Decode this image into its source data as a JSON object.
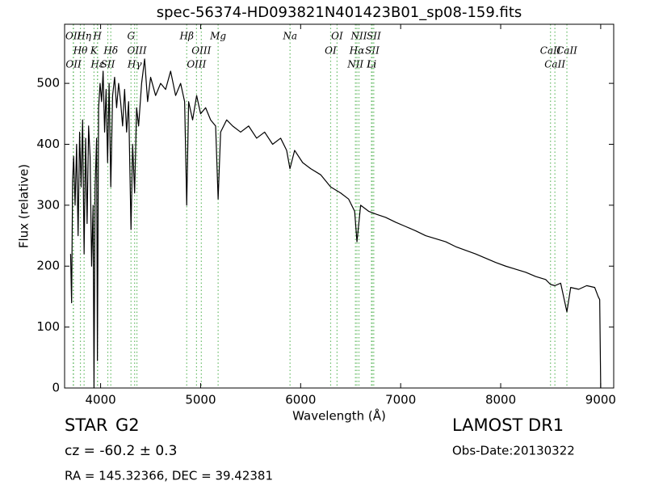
{
  "chart_data": {
    "type": "line",
    "title": "spec-56374-HD093821N401423B01_sp08-159.fits",
    "x_label": "Wavelength (Å)",
    "y_label": "Flux (relative)",
    "xlim": [
      3640,
      9130
    ],
    "ylim": [
      0,
      597
    ],
    "xticks": [
      4000,
      5000,
      6000,
      7000,
      8000,
      9000
    ],
    "yticks": [
      0,
      100,
      200,
      300,
      400,
      500
    ],
    "color": "#000000",
    "line_color": "#66bb66",
    "x": [
      3700,
      3710,
      3720,
      3730,
      3745,
      3760,
      3775,
      3790,
      3805,
      3820,
      3835,
      3850,
      3865,
      3880,
      3895,
      3910,
      3925,
      3934,
      3945,
      3960,
      3968,
      3980,
      3995,
      4010,
      4025,
      4040,
      4055,
      4070,
      4085,
      4102,
      4120,
      4140,
      4160,
      4180,
      4200,
      4220,
      4240,
      4260,
      4280,
      4304,
      4320,
      4340,
      4360,
      4380,
      4410,
      4440,
      4470,
      4500,
      4550,
      4600,
      4650,
      4700,
      4750,
      4800,
      4840,
      4861,
      4880,
      4920,
      4960,
      5000,
      5050,
      5100,
      5150,
      5175,
      5200,
      5260,
      5320,
      5400,
      5480,
      5560,
      5640,
      5720,
      5800,
      5860,
      5893,
      5940,
      6020,
      6100,
      6200,
      6300,
      6400,
      6480,
      6540,
      6563,
      6600,
      6680,
      6760,
      6850,
      6950,
      7050,
      7150,
      7250,
      7350,
      7450,
      7550,
      7650,
      7750,
      7850,
      7950,
      8050,
      8150,
      8250,
      8350,
      8450,
      8498,
      8542,
      8600,
      8662,
      8700,
      8780,
      8860,
      8940,
      8975,
      8990,
      9000
    ],
    "values": [
      220,
      140,
      340,
      380,
      300,
      400,
      250,
      420,
      330,
      440,
      220,
      410,
      270,
      430,
      380,
      200,
      300,
      0,
      330,
      410,
      45,
      460,
      500,
      470,
      520,
      420,
      490,
      370,
      500,
      330,
      480,
      510,
      460,
      500,
      470,
      430,
      490,
      420,
      470,
      260,
      400,
      320,
      460,
      430,
      500,
      540,
      470,
      510,
      480,
      500,
      490,
      520,
      480,
      500,
      470,
      300,
      470,
      440,
      480,
      450,
      460,
      440,
      430,
      310,
      420,
      440,
      430,
      420,
      430,
      410,
      420,
      400,
      410,
      390,
      360,
      390,
      370,
      360,
      350,
      330,
      320,
      310,
      290,
      240,
      300,
      290,
      285,
      280,
      272,
      265,
      258,
      250,
      245,
      240,
      232,
      226,
      220,
      213,
      206,
      200,
      195,
      190,
      183,
      178,
      170,
      168,
      172,
      125,
      165,
      162,
      168,
      165,
      150,
      145,
      0
    ],
    "lines": [
      {
        "label": "OII",
        "wavelength": 3726
      },
      {
        "label": "Hθ",
        "wavelength": 3798
      },
      {
        "label": "OII",
        "wavelength": 3729
      },
      {
        "label": "Hη",
        "wavelength": 3835
      },
      {
        "label": "K",
        "wavelength": 3934
      },
      {
        "label": "Hε",
        "wavelength": 3970
      },
      {
        "label": "H",
        "wavelength": 3968
      },
      {
        "label": "Hδ",
        "wavelength": 4102
      },
      {
        "label": "SII",
        "wavelength": 4072
      },
      {
        "label": "G",
        "wavelength": 4304
      },
      {
        "label": "OIII",
        "wavelength": 4363
      },
      {
        "label": "Hγ",
        "wavelength": 4340
      },
      {
        "label": "Hβ",
        "wavelength": 4861
      },
      {
        "label": "OIII",
        "wavelength": 5007
      },
      {
        "label": "OIII",
        "wavelength": 4959
      },
      {
        "label": "Mg",
        "wavelength": 5175
      },
      {
        "label": "OI",
        "wavelength": 6300
      },
      {
        "label": "NII",
        "wavelength": 6548
      },
      {
        "label": "Na",
        "wavelength": 5894
      },
      {
        "label": "Hα",
        "wavelength": 6563
      },
      {
        "label": "Li",
        "wavelength": 6708
      },
      {
        "label": "OI",
        "wavelength": 6364
      },
      {
        "label": "SII",
        "wavelength": 6716
      },
      {
        "label": "CaII",
        "wavelength": 8542
      },
      {
        "label": "NII",
        "wavelength": 6583
      },
      {
        "label": "CaII",
        "wavelength": 8498
      },
      {
        "label": "Li",
        "wavelength": 6710
      },
      {
        "label": "SII",
        "wavelength": 6731
      },
      {
        "label": "CaII",
        "wavelength": 8662
      }
    ],
    "object_class": "STAR",
    "subclass": "G2",
    "redshift_text": "cz = -60.2 ± 0.3",
    "coords_text": "RA = 145.32366, DEC = 39.42381",
    "survey": "LAMOST DR1",
    "obs_date": "Obs-Date:20130322"
  }
}
